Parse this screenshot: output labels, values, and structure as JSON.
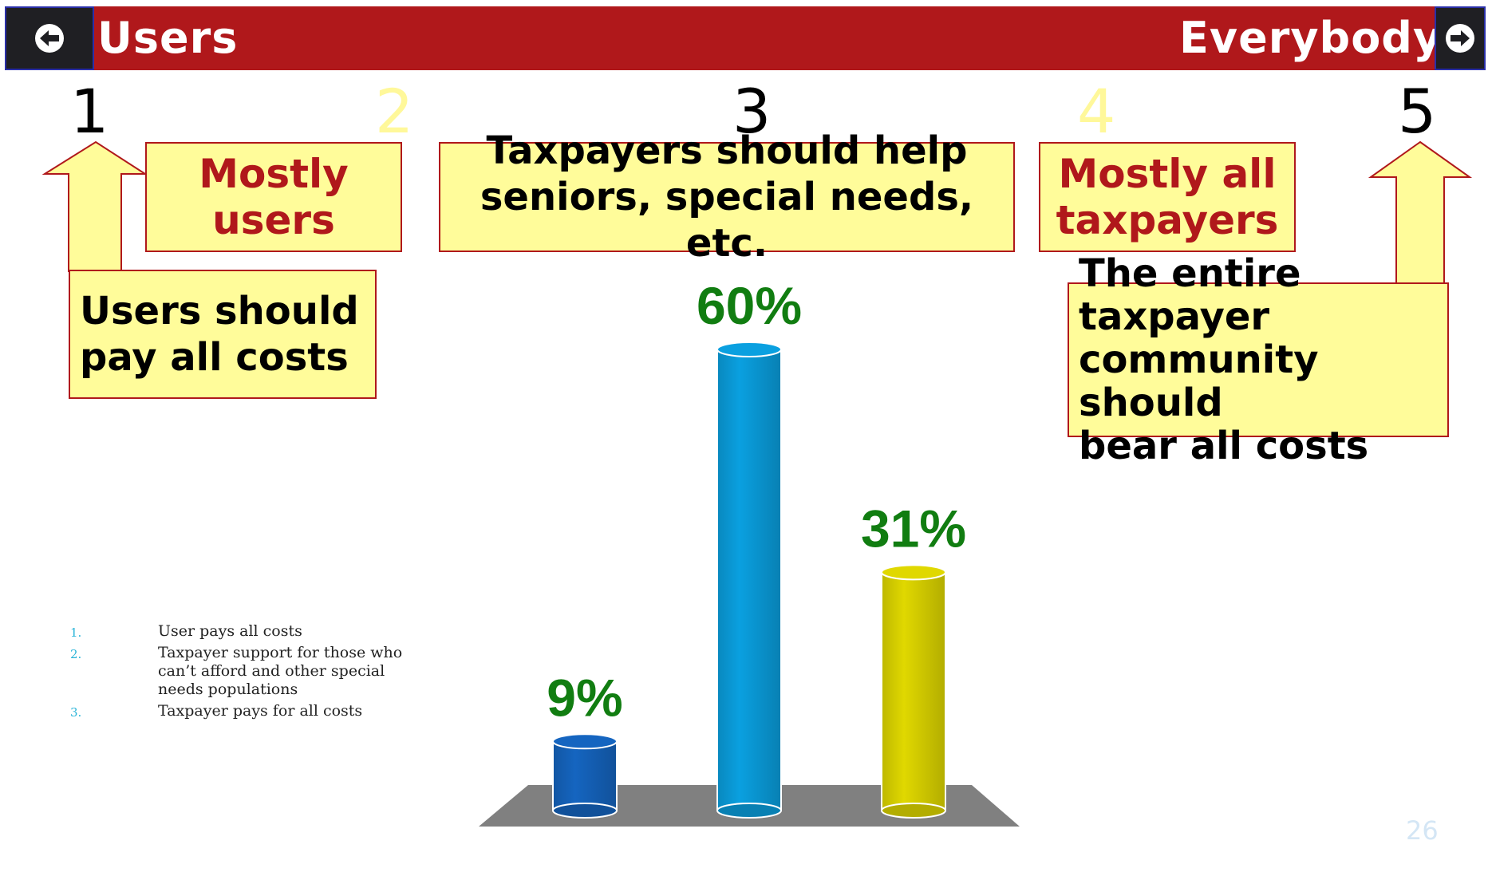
{
  "header": {
    "left_label": "Users",
    "right_label": "Everybody",
    "left_icon": "arrow-left-circle-icon",
    "right_icon": "arrow-right-circle-icon",
    "bar_color": "#b0181b"
  },
  "scale": [
    "1",
    "2",
    "3",
    "4",
    "5"
  ],
  "callouts": {
    "mostly_users": [
      "Mostly",
      "users"
    ],
    "taxpayers_help": [
      "Taxpayers should help",
      "seniors, special needs, etc."
    ],
    "mostly_taxpayers": [
      "Mostly all",
      "taxpayers"
    ],
    "users_pay": [
      "Users should",
      "pay all costs"
    ],
    "community_pays": [
      "The entire taxpayer",
      "community should",
      "bear all costs"
    ]
  },
  "legend": [
    {
      "num": "1.",
      "text": "User pays all costs"
    },
    {
      "num": "2.",
      "text": "Taxpayer support for those who can’t afford and other special needs populations"
    },
    {
      "num": "3.",
      "text": "Taxpayer pays for all costs"
    }
  ],
  "page_number": "26",
  "chart_data": {
    "type": "bar",
    "categories": [
      "1",
      "2",
      "3"
    ],
    "values": [
      9,
      60,
      31
    ],
    "labels": [
      "9%",
      "60%",
      "31%"
    ],
    "colors": [
      "#1565c0",
      "#0aa0e0",
      "#e0d800"
    ],
    "label_color": "#117d11",
    "ylim": [
      0,
      60
    ]
  }
}
